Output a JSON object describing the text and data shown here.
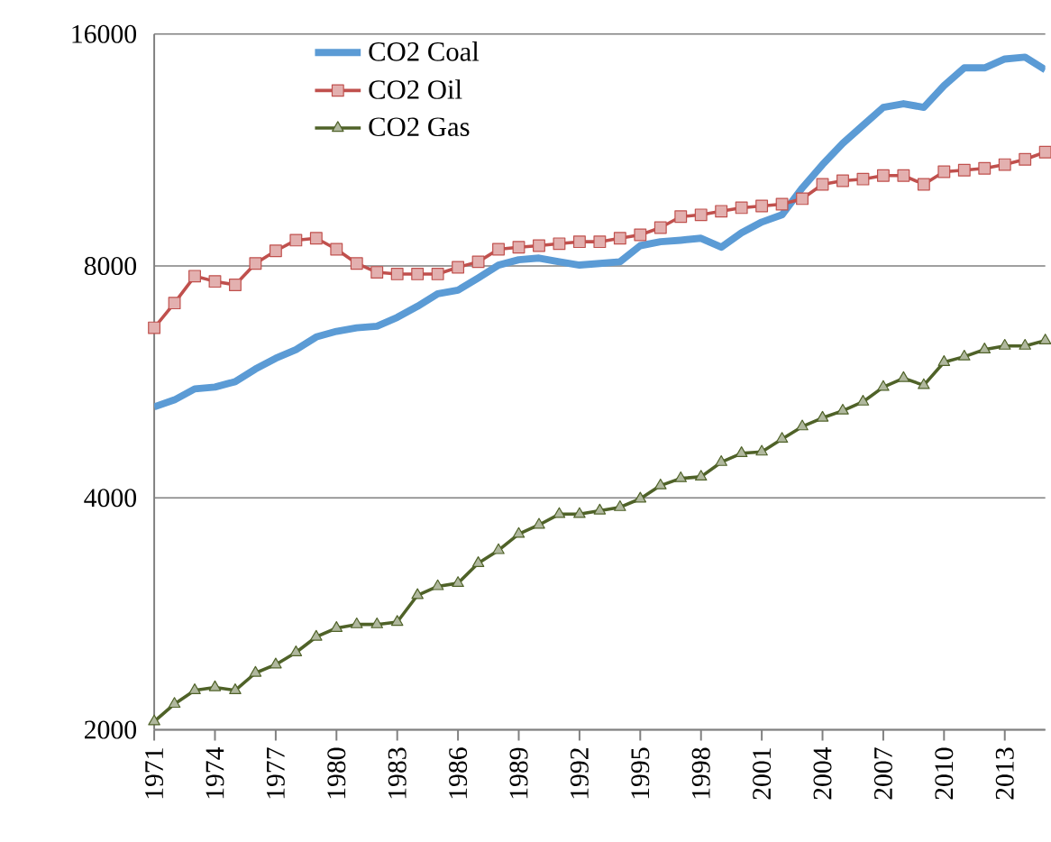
{
  "chart_data": {
    "type": "line",
    "x": [
      1971,
      1972,
      1973,
      1974,
      1975,
      1976,
      1977,
      1978,
      1979,
      1980,
      1981,
      1982,
      1983,
      1984,
      1985,
      1986,
      1987,
      1988,
      1989,
      1990,
      1991,
      1992,
      1993,
      1994,
      1995,
      1996,
      1997,
      1998,
      1999,
      2000,
      2001,
      2002,
      2003,
      2004,
      2005,
      2006,
      2007,
      2008,
      2009,
      2010,
      2011,
      2012,
      2013,
      2014,
      2015
    ],
    "series": [
      {
        "name": "CO2 Coal",
        "color": "#5b9bd5",
        "marker": "none",
        "values": [
          5250,
          5360,
          5540,
          5570,
          5660,
          5880,
          6070,
          6230,
          6470,
          6580,
          6650,
          6680,
          6860,
          7090,
          7360,
          7440,
          7720,
          8020,
          8150,
          8190,
          8100,
          8020,
          8060,
          8100,
          8500,
          8600,
          8640,
          8690,
          8460,
          8830,
          9120,
          9320,
          10100,
          10830,
          11540,
          12180,
          12850,
          12990,
          12850,
          13710,
          14460,
          14460,
          14850,
          14930,
          14380
        ]
      },
      {
        "name": "CO2  Oil",
        "color": "#c0504d",
        "marker": "square",
        "values": [
          6650,
          7160,
          7760,
          7640,
          7560,
          8060,
          8370,
          8640,
          8690,
          8410,
          8060,
          7850,
          7810,
          7810,
          7810,
          7970,
          8100,
          8410,
          8460,
          8500,
          8550,
          8600,
          8600,
          8690,
          8780,
          8970,
          9270,
          9320,
          9420,
          9520,
          9570,
          9620,
          9780,
          10210,
          10320,
          10370,
          10480,
          10480,
          10210,
          10600,
          10650,
          10710,
          10830,
          11000,
          11240
        ]
      },
      {
        "name": "CO2 Gas",
        "color": "#4f6228",
        "marker": "triangle",
        "values": [
          2050,
          2160,
          2250,
          2270,
          2250,
          2370,
          2430,
          2520,
          2640,
          2710,
          2740,
          2740,
          2760,
          2990,
          3070,
          3100,
          3290,
          3420,
          3590,
          3690,
          3810,
          3810,
          3850,
          3890,
          3990,
          4150,
          4240,
          4260,
          4450,
          4570,
          4590,
          4770,
          4950,
          5080,
          5190,
          5330,
          5570,
          5720,
          5600,
          6000,
          6100,
          6230,
          6300,
          6300,
          6400
        ]
      }
    ],
    "xlim": [
      1971,
      2015
    ],
    "xticks": [
      1971,
      1974,
      1977,
      1980,
      1983,
      1986,
      1989,
      1992,
      1995,
      1998,
      2001,
      2004,
      2007,
      2010,
      2013
    ],
    "ylim": [
      2000,
      16000
    ],
    "yticks": [
      2000,
      4000,
      8000,
      16000
    ],
    "log": "y",
    "grid": "y",
    "legend": "top left"
  }
}
